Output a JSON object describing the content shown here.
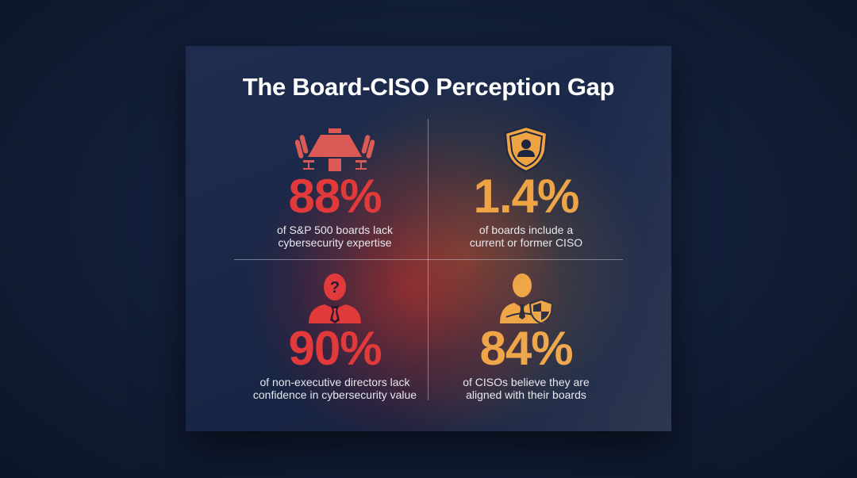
{
  "title": "The Board-CISO Perception Gap",
  "colors": {
    "red": "#e23a3b",
    "orange": "#eea444"
  },
  "stats": [
    {
      "icon": "boardroom-table-icon",
      "value": "88%",
      "caption_line1": "of S&P 500 boards lack",
      "caption_line2": "cybersecurity expertise",
      "color": "red"
    },
    {
      "icon": "shield-user-icon",
      "value": "1.4%",
      "caption_line1": "of boards include a",
      "caption_line2": "current or former CISO",
      "color": "orange"
    },
    {
      "icon": "person-question-icon",
      "value": "90%",
      "caption_line1": "of non-executive directors lack",
      "caption_line2": "confidence in cybersecurity value",
      "color": "red"
    },
    {
      "icon": "person-shield-icon",
      "value": "84%",
      "caption_line1": "of CISOs believe they are",
      "caption_line2": "aligned with their boards",
      "color": "orange"
    }
  ]
}
